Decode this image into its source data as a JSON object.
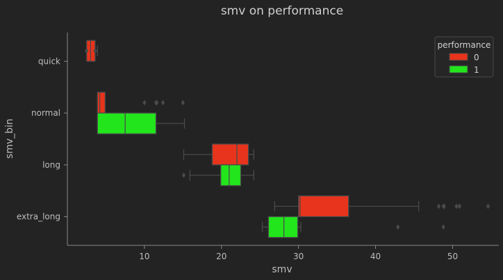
{
  "chart_data": {
    "type": "boxplot",
    "orientation": "horizontal",
    "title": "smv on performance",
    "xlabel": "smv",
    "ylabel": "smv_bin",
    "xlim": [
      0,
      56
    ],
    "xticks": [
      10,
      20,
      30,
      40,
      50
    ],
    "categories": [
      "quick",
      "normal",
      "long",
      "extra_long"
    ],
    "legend": {
      "title": "performance",
      "position": "top-right"
    },
    "series": [
      {
        "name": "0",
        "color": "#e8341c",
        "boxes": [
          {
            "category": "quick",
            "whisker_low": 2.5,
            "q1": 2.5,
            "median": 3.0,
            "q3": 3.6,
            "whisker_high": 3.9,
            "outliers": [
              2.5,
              3.6
            ]
          },
          {
            "category": "normal",
            "whisker_low": 3.9,
            "q1": 3.9,
            "median": 4.2,
            "q3": 4.9,
            "whisker_high": 4.9,
            "outliers": [
              10,
              11.5,
              11.6,
              12.4,
              15
            ]
          },
          {
            "category": "long",
            "whisker_low": 15.1,
            "q1": 18.8,
            "median": 22.0,
            "q3": 23.5,
            "whisker_high": 24.2,
            "outliers": []
          },
          {
            "category": "extra_long",
            "whisker_low": 26.9,
            "q1": 30.0,
            "median": 30.2,
            "q3": 36.5,
            "whisker_high": 45.6,
            "outliers": [
              48.2,
              48.8,
              48.9,
              50.5,
              50.9,
              54.6
            ]
          }
        ]
      },
      {
        "name": "1",
        "color": "#22e51c",
        "boxes": [
          {
            "category": "normal",
            "whisker_low": 3.9,
            "q1": 3.9,
            "median": 7.5,
            "q3": 11.5,
            "whisker_high": 15.2,
            "outliers": []
          },
          {
            "category": "long",
            "whisker_low": 15.9,
            "q1": 19.9,
            "median": 21.0,
            "q3": 22.5,
            "whisker_high": 24.2,
            "outliers": [
              15.1
            ]
          },
          {
            "category": "extra_long",
            "whisker_low": 25.3,
            "q1": 26.1,
            "median": 28.1,
            "q3": 29.9,
            "whisker_high": 30.3,
            "outliers": [
              42.9,
              48.8
            ]
          }
        ]
      }
    ]
  }
}
